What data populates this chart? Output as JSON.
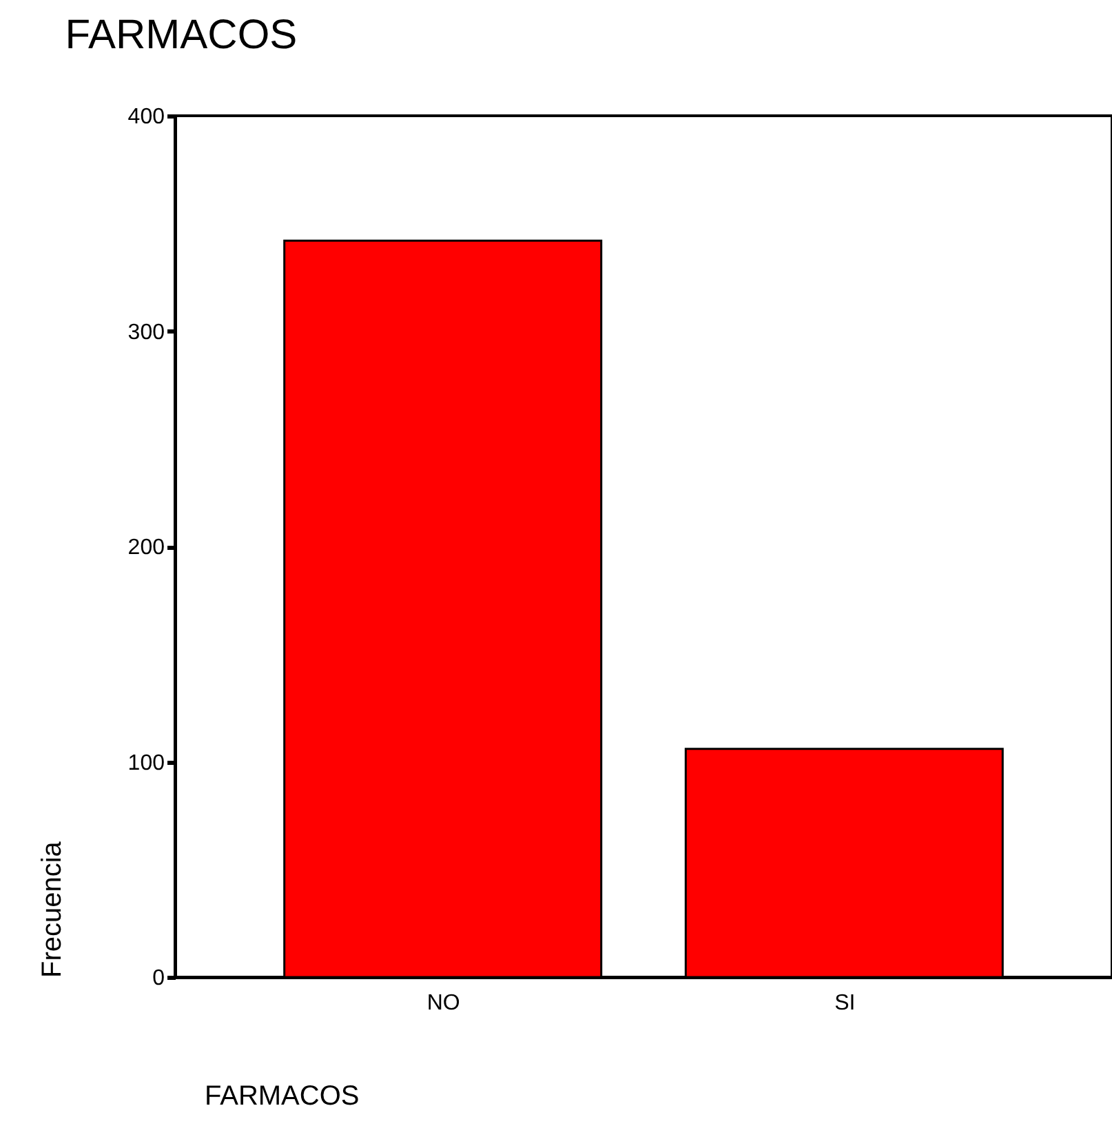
{
  "chart_data": {
    "type": "bar",
    "title": "FARMACOS",
    "xlabel": "FARMACOS",
    "ylabel": "Frecuencia",
    "categories": [
      "NO",
      "SI"
    ],
    "series": [
      {
        "color": "#ff0000",
        "values": [
          342,
          106
        ]
      }
    ],
    "ylim": [
      0,
      400
    ],
    "yticks": [
      0,
      100,
      200,
      300,
      400
    ],
    "grid": false
  }
}
